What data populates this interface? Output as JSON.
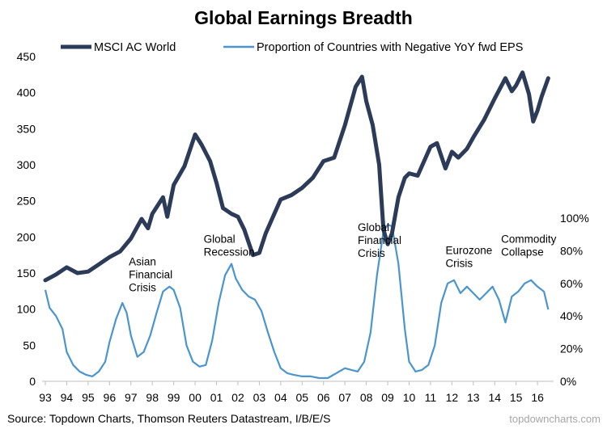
{
  "chart_data": {
    "type": "line",
    "title": "Global Earnings Breadth",
    "source": "Source: Topdown Charts, Thomson Reuters Datastream, I/B/E/S",
    "brand": "topdowncharts.com",
    "colors": {
      "msci": "#2b3b58",
      "proportion": "#4a95cf"
    },
    "x_ticks": [
      "93",
      "94",
      "95",
      "96",
      "97",
      "98",
      "99",
      "00",
      "01",
      "02",
      "03",
      "04",
      "05",
      "06",
      "07",
      "08",
      "09",
      "10",
      "11",
      "12",
      "13",
      "14",
      "15",
      "16"
    ],
    "x_range": [
      1993.0,
      2016.6
    ],
    "left_axis": {
      "ticks": [
        "0",
        "50",
        "100",
        "150",
        "200",
        "250",
        "300",
        "350",
        "400",
        "450"
      ],
      "range": [
        0,
        450
      ]
    },
    "right_axis": {
      "ticks": [
        "0%",
        "20%",
        "40%",
        "60%",
        "80%",
        "100%"
      ],
      "range": [
        0,
        100
      ]
    },
    "legend_position": "top",
    "grid": false,
    "series": [
      {
        "name": "MSCI AC World",
        "axis": "left",
        "points": [
          [
            1993.0,
            140
          ],
          [
            1993.5,
            148
          ],
          [
            1994.0,
            158
          ],
          [
            1994.5,
            150
          ],
          [
            1995.0,
            152
          ],
          [
            1995.5,
            162
          ],
          [
            1996.0,
            172
          ],
          [
            1996.5,
            180
          ],
          [
            1997.0,
            198
          ],
          [
            1997.5,
            225
          ],
          [
            1997.8,
            212
          ],
          [
            1998.0,
            232
          ],
          [
            1998.5,
            255
          ],
          [
            1998.7,
            228
          ],
          [
            1999.0,
            272
          ],
          [
            1999.5,
            298
          ],
          [
            2000.0,
            342
          ],
          [
            2000.3,
            328
          ],
          [
            2000.7,
            305
          ],
          [
            2001.0,
            275
          ],
          [
            2001.3,
            240
          ],
          [
            2001.7,
            232
          ],
          [
            2002.0,
            228
          ],
          [
            2002.3,
            210
          ],
          [
            2002.7,
            175
          ],
          [
            2003.0,
            178
          ],
          [
            2003.3,
            205
          ],
          [
            2003.7,
            232
          ],
          [
            2004.0,
            252
          ],
          [
            2004.5,
            258
          ],
          [
            2005.0,
            268
          ],
          [
            2005.5,
            282
          ],
          [
            2006.0,
            305
          ],
          [
            2006.5,
            310
          ],
          [
            2007.0,
            355
          ],
          [
            2007.5,
            408
          ],
          [
            2007.8,
            422
          ],
          [
            2008.0,
            388
          ],
          [
            2008.3,
            355
          ],
          [
            2008.6,
            300
          ],
          [
            2008.8,
            210
          ],
          [
            2009.0,
            190
          ],
          [
            2009.2,
            205
          ],
          [
            2009.5,
            255
          ],
          [
            2009.8,
            282
          ],
          [
            2010.0,
            288
          ],
          [
            2010.4,
            285
          ],
          [
            2010.7,
            305
          ],
          [
            2011.0,
            325
          ],
          [
            2011.3,
            330
          ],
          [
            2011.7,
            295
          ],
          [
            2012.0,
            318
          ],
          [
            2012.3,
            310
          ],
          [
            2012.7,
            322
          ],
          [
            2013.0,
            338
          ],
          [
            2013.5,
            362
          ],
          [
            2014.0,
            392
          ],
          [
            2014.5,
            420
          ],
          [
            2014.8,
            402
          ],
          [
            2015.0,
            410
          ],
          [
            2015.3,
            428
          ],
          [
            2015.6,
            398
          ],
          [
            2015.8,
            360
          ],
          [
            2016.0,
            375
          ],
          [
            2016.2,
            395
          ],
          [
            2016.5,
            420
          ]
        ]
      },
      {
        "name": "Proportion of Countries with Negative YoY fwd EPS",
        "axis": "right",
        "points": [
          [
            1993.0,
            56
          ],
          [
            1993.2,
            45
          ],
          [
            1993.5,
            40
          ],
          [
            1993.8,
            32
          ],
          [
            1994.0,
            18
          ],
          [
            1994.3,
            10
          ],
          [
            1994.6,
            6
          ],
          [
            1994.9,
            4
          ],
          [
            1995.2,
            3
          ],
          [
            1995.5,
            6
          ],
          [
            1995.8,
            12
          ],
          [
            1996.0,
            24
          ],
          [
            1996.3,
            38
          ],
          [
            1996.6,
            48
          ],
          [
            1996.8,
            42
          ],
          [
            1997.0,
            28
          ],
          [
            1997.3,
            15
          ],
          [
            1997.6,
            18
          ],
          [
            1997.9,
            28
          ],
          [
            1998.2,
            42
          ],
          [
            1998.5,
            55
          ],
          [
            1998.8,
            58
          ],
          [
            1999.0,
            56
          ],
          [
            1999.3,
            45
          ],
          [
            1999.6,
            22
          ],
          [
            1999.9,
            12
          ],
          [
            2000.2,
            9
          ],
          [
            2000.5,
            10
          ],
          [
            2000.8,
            25
          ],
          [
            2001.1,
            48
          ],
          [
            2001.4,
            65
          ],
          [
            2001.7,
            72
          ],
          [
            2001.9,
            63
          ],
          [
            2002.2,
            56
          ],
          [
            2002.5,
            52
          ],
          [
            2002.8,
            50
          ],
          [
            2003.1,
            43
          ],
          [
            2003.4,
            30
          ],
          [
            2003.7,
            18
          ],
          [
            2004.0,
            8
          ],
          [
            2004.3,
            5
          ],
          [
            2004.6,
            4
          ],
          [
            2005.0,
            3
          ],
          [
            2005.4,
            3
          ],
          [
            2005.8,
            2
          ],
          [
            2006.2,
            2
          ],
          [
            2006.6,
            5
          ],
          [
            2007.0,
            8
          ],
          [
            2007.3,
            7
          ],
          [
            2007.6,
            6
          ],
          [
            2007.9,
            12
          ],
          [
            2008.2,
            30
          ],
          [
            2008.5,
            65
          ],
          [
            2008.8,
            92
          ],
          [
            2009.0,
            96
          ],
          [
            2009.2,
            95
          ],
          [
            2009.5,
            72
          ],
          [
            2009.8,
            32
          ],
          [
            2010.0,
            12
          ],
          [
            2010.3,
            6
          ],
          [
            2010.6,
            7
          ],
          [
            2010.9,
            10
          ],
          [
            2011.2,
            22
          ],
          [
            2011.5,
            48
          ],
          [
            2011.8,
            60
          ],
          [
            2012.1,
            62
          ],
          [
            2012.4,
            54
          ],
          [
            2012.7,
            58
          ],
          [
            2013.0,
            54
          ],
          [
            2013.3,
            50
          ],
          [
            2013.6,
            54
          ],
          [
            2013.9,
            58
          ],
          [
            2014.2,
            50
          ],
          [
            2014.5,
            36
          ],
          [
            2014.8,
            52
          ],
          [
            2015.1,
            55
          ],
          [
            2015.4,
            60
          ],
          [
            2015.7,
            62
          ],
          [
            2016.0,
            58
          ],
          [
            2016.3,
            55
          ],
          [
            2016.5,
            44
          ]
        ]
      }
    ],
    "annotations": [
      {
        "lines": [
          "Asian",
          "Financial",
          "Crisis"
        ],
        "x": 1996.9,
        "y_right": 71
      },
      {
        "lines": [
          "Global",
          "Recession"
        ],
        "x": 2000.4,
        "y_right": 85
      },
      {
        "lines": [
          "Global",
          "Financial",
          "Crisis"
        ],
        "x": 2007.6,
        "y_right": 92
      },
      {
        "lines": [
          "Eurozone",
          "Crisis"
        ],
        "x": 2011.7,
        "y_right": 78
      },
      {
        "lines": [
          "Commodity",
          "Collapse"
        ],
        "x": 2014.3,
        "y_right": 85
      }
    ]
  }
}
